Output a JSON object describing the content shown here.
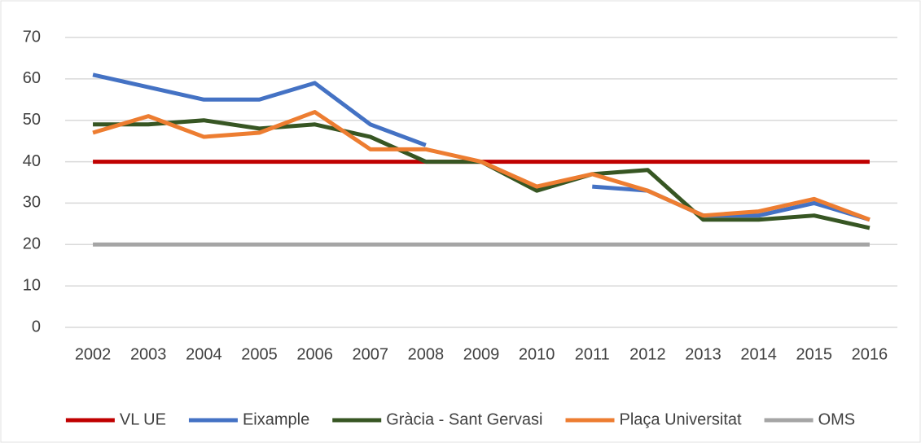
{
  "chart_data": {
    "type": "line",
    "categories": [
      "2002",
      "2003",
      "2004",
      "2005",
      "2006",
      "2007",
      "2008",
      "2009",
      "2010",
      "2011",
      "2012",
      "2013",
      "2014",
      "2015",
      "2016"
    ],
    "series": [
      {
        "name": "VL UE",
        "color": "#c00000",
        "values": [
          40,
          40,
          40,
          40,
          40,
          40,
          40,
          40,
          40,
          40,
          40,
          40,
          40,
          40,
          40
        ]
      },
      {
        "name": "Eixample",
        "color": "#4472c4",
        "values": [
          61,
          58,
          55,
          55,
          59,
          49,
          44,
          null,
          null,
          34,
          33,
          27,
          27,
          30,
          26
        ]
      },
      {
        "name": "Gràcia - Sant Gervasi",
        "color": "#375623",
        "values": [
          49,
          49,
          50,
          48,
          49,
          46,
          40,
          40,
          33,
          37,
          38,
          26,
          26,
          27,
          24
        ]
      },
      {
        "name": "Plaça Universitat",
        "color": "#ed7d31",
        "values": [
          47,
          51,
          46,
          47,
          52,
          43,
          43,
          40,
          34,
          37,
          33,
          27,
          28,
          31,
          26
        ]
      },
      {
        "name": "OMS",
        "color": "#a5a5a5",
        "values": [
          20,
          20,
          20,
          20,
          20,
          20,
          20,
          20,
          20,
          20,
          20,
          20,
          20,
          20,
          20
        ]
      }
    ],
    "ylim": [
      0,
      70
    ],
    "yticks": [
      0,
      10,
      20,
      30,
      40,
      50,
      60,
      70
    ],
    "grid": true,
    "legend": "bottom"
  }
}
